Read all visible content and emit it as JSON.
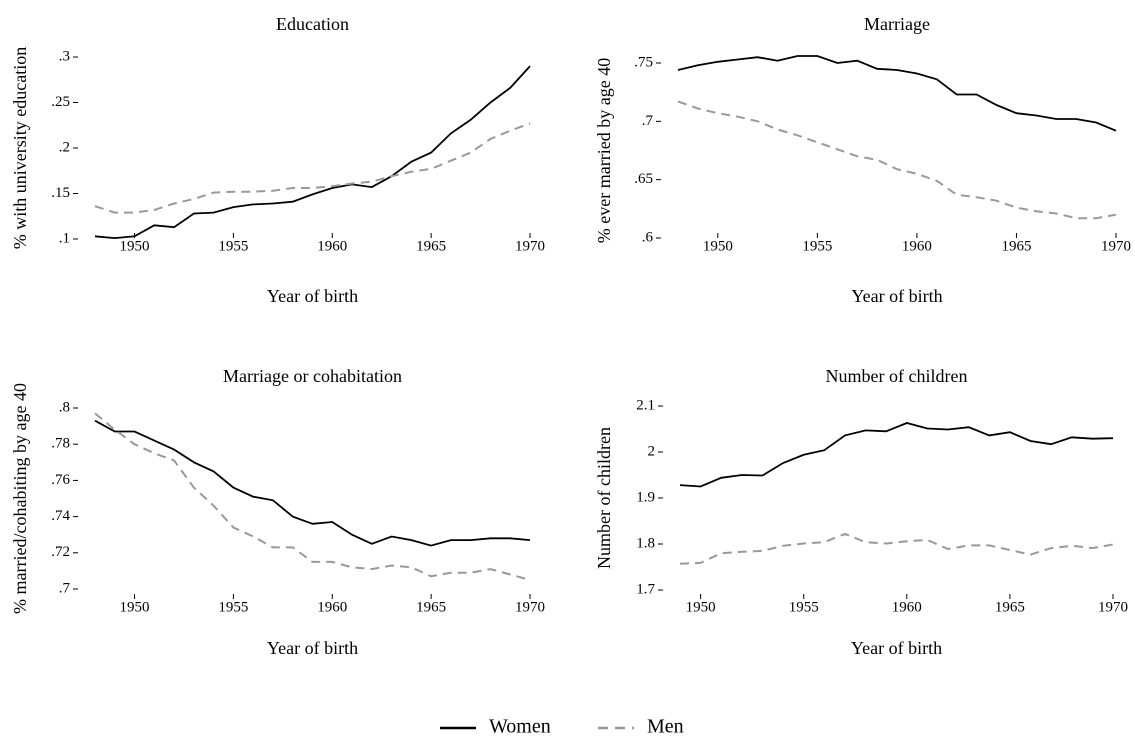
{
  "chart_data": [
    {
      "type": "line",
      "title": "Education",
      "x_label": "Year of birth",
      "y_label": "% with university education",
      "x": [
        1948,
        1949,
        1950,
        1951,
        1952,
        1953,
        1954,
        1955,
        1956,
        1957,
        1958,
        1959,
        1960,
        1961,
        1962,
        1963,
        1964,
        1965,
        1966,
        1967,
        1968,
        1969,
        1970
      ],
      "series": [
        {
          "name": "Women",
          "color": "#000000",
          "line_style": "solid",
          "values": [
            0.103,
            0.101,
            0.103,
            0.115,
            0.113,
            0.128,
            0.129,
            0.135,
            0.138,
            0.139,
            0.141,
            0.149,
            0.156,
            0.16,
            0.157,
            0.169,
            0.185,
            0.195,
            0.216,
            0.231,
            0.25,
            0.266,
            0.29
          ]
        },
        {
          "name": "Men",
          "color": "#999999",
          "line_style": "dashed",
          "values": [
            0.136,
            0.129,
            0.129,
            0.132,
            0.139,
            0.144,
            0.151,
            0.152,
            0.152,
            0.153,
            0.156,
            0.156,
            0.158,
            0.161,
            0.163,
            0.169,
            0.174,
            0.177,
            0.186,
            0.195,
            0.21,
            0.219,
            0.227
          ]
        }
      ],
      "xlim": [
        1948,
        1970
      ],
      "xticks": [
        1950,
        1955,
        1960,
        1965,
        1970
      ],
      "ylim": [
        0.1,
        0.3
      ],
      "yticks": [
        {
          "value": 0.1,
          "label": ".1"
        },
        {
          "value": 0.15,
          "label": ".15"
        },
        {
          "value": 0.2,
          "label": ".2"
        },
        {
          "value": 0.25,
          "label": ".25"
        },
        {
          "value": 0.3,
          "label": ".3"
        }
      ]
    },
    {
      "type": "line",
      "title": "Marriage",
      "x_label": "Year of birth",
      "y_label": "% ever married by age 40",
      "x": [
        1948,
        1949,
        1950,
        1951,
        1952,
        1953,
        1954,
        1955,
        1956,
        1957,
        1958,
        1959,
        1960,
        1961,
        1962,
        1963,
        1964,
        1965,
        1966,
        1967,
        1968,
        1969,
        1970
      ],
      "series": [
        {
          "color": "#000000",
          "line_style": "solid",
          "values": [
            0.744,
            0.748,
            0.751,
            0.753,
            0.755,
            0.752,
            0.756,
            0.756,
            0.75,
            0.752,
            0.745,
            0.744,
            0.741,
            0.736,
            0.723,
            0.723,
            0.714,
            0.707,
            0.705,
            0.702,
            0.702,
            0.699,
            0.692
          ]
        },
        {
          "color": "#999999",
          "line_style": "dashed",
          "values": [
            0.717,
            0.711,
            0.707,
            0.704,
            0.7,
            0.693,
            0.688,
            0.682,
            0.676,
            0.67,
            0.667,
            0.659,
            0.655,
            0.649,
            0.637,
            0.635,
            0.632,
            0.626,
            0.623,
            0.621,
            0.617,
            0.617,
            0.62
          ]
        }
      ],
      "xlim": [
        1948,
        1970
      ],
      "xticks": [
        1950,
        1955,
        1960,
        1965,
        1970
      ],
      "ylim": [
        0.6,
        0.75
      ],
      "yticks": [
        {
          "value": 0.6,
          "label": ".6"
        },
        {
          "value": 0.65,
          "label": ".65"
        },
        {
          "value": 0.7,
          "label": ".7"
        },
        {
          "value": 0.75,
          "label": ".75"
        }
      ]
    },
    {
      "type": "line",
      "title": "Marriage or cohabitation",
      "x_label": "Year of birth",
      "y_label": "% married/cohabiting by age 40",
      "x": [
        1948,
        1949,
        1950,
        1951,
        1952,
        1953,
        1954,
        1955,
        1956,
        1957,
        1958,
        1959,
        1960,
        1961,
        1962,
        1963,
        1964,
        1965,
        1966,
        1967,
        1968,
        1969,
        1970
      ],
      "series": [
        {
          "color": "#000000",
          "line_style": "solid",
          "values": [
            0.793,
            0.787,
            0.787,
            0.782,
            0.777,
            0.77,
            0.765,
            0.756,
            0.751,
            0.749,
            0.74,
            0.736,
            0.737,
            0.73,
            0.725,
            0.729,
            0.727,
            0.724,
            0.727,
            0.727,
            0.728,
            0.728,
            0.727
          ]
        },
        {
          "color": "#999999",
          "line_style": "dashed",
          "values": [
            0.797,
            0.788,
            0.78,
            0.775,
            0.771,
            0.756,
            0.746,
            0.734,
            0.729,
            0.723,
            0.723,
            0.715,
            0.715,
            0.712,
            0.711,
            0.713,
            0.712,
            0.707,
            0.709,
            0.709,
            0.711,
            0.708,
            0.705
          ]
        }
      ],
      "xlim": [
        1948,
        1970
      ],
      "xticks": [
        1950,
        1955,
        1960,
        1965,
        1970
      ],
      "ylim": [
        0.7,
        0.8
      ],
      "yticks": [
        {
          "value": 0.7,
          "label": ".7"
        },
        {
          "value": 0.72,
          "label": ".72"
        },
        {
          "value": 0.74,
          "label": ".74"
        },
        {
          "value": 0.76,
          "label": ".76"
        },
        {
          "value": 0.78,
          "label": ".78"
        },
        {
          "value": 0.8,
          "label": ".8"
        }
      ]
    },
    {
      "type": "line",
      "title": "Number of children",
      "x_label": "Year of birth",
      "y_label": "Number of children",
      "x": [
        1949,
        1950,
        1951,
        1952,
        1953,
        1954,
        1955,
        1956,
        1957,
        1958,
        1959,
        1960,
        1961,
        1962,
        1963,
        1964,
        1965,
        1966,
        1967,
        1968,
        1969,
        1970
      ],
      "series": [
        {
          "color": "#000000",
          "line_style": "solid",
          "values": [
            1.928,
            1.925,
            1.944,
            1.95,
            1.949,
            1.976,
            1.994,
            2.004,
            2.036,
            2.047,
            2.045,
            2.063,
            2.051,
            2.049,
            2.054,
            2.036,
            2.043,
            2.024,
            2.017,
            2.032,
            2.029,
            2.03
          ]
        },
        {
          "color": "#999999",
          "line_style": "dashed",
          "values": [
            1.757,
            1.759,
            1.78,
            1.783,
            1.785,
            1.796,
            1.801,
            1.804,
            1.822,
            1.804,
            1.801,
            1.806,
            1.809,
            1.789,
            1.797,
            1.797,
            1.787,
            1.777,
            1.791,
            1.796,
            1.791,
            1.799
          ]
        }
      ],
      "xlim": [
        1949,
        1970
      ],
      "xticks": [
        1950,
        1955,
        1960,
        1965,
        1970
      ],
      "ylim": [
        1.7,
        2.1
      ],
      "yticks": [
        1.7,
        1.8,
        1.9,
        2,
        2.1
      ]
    }
  ]
}
